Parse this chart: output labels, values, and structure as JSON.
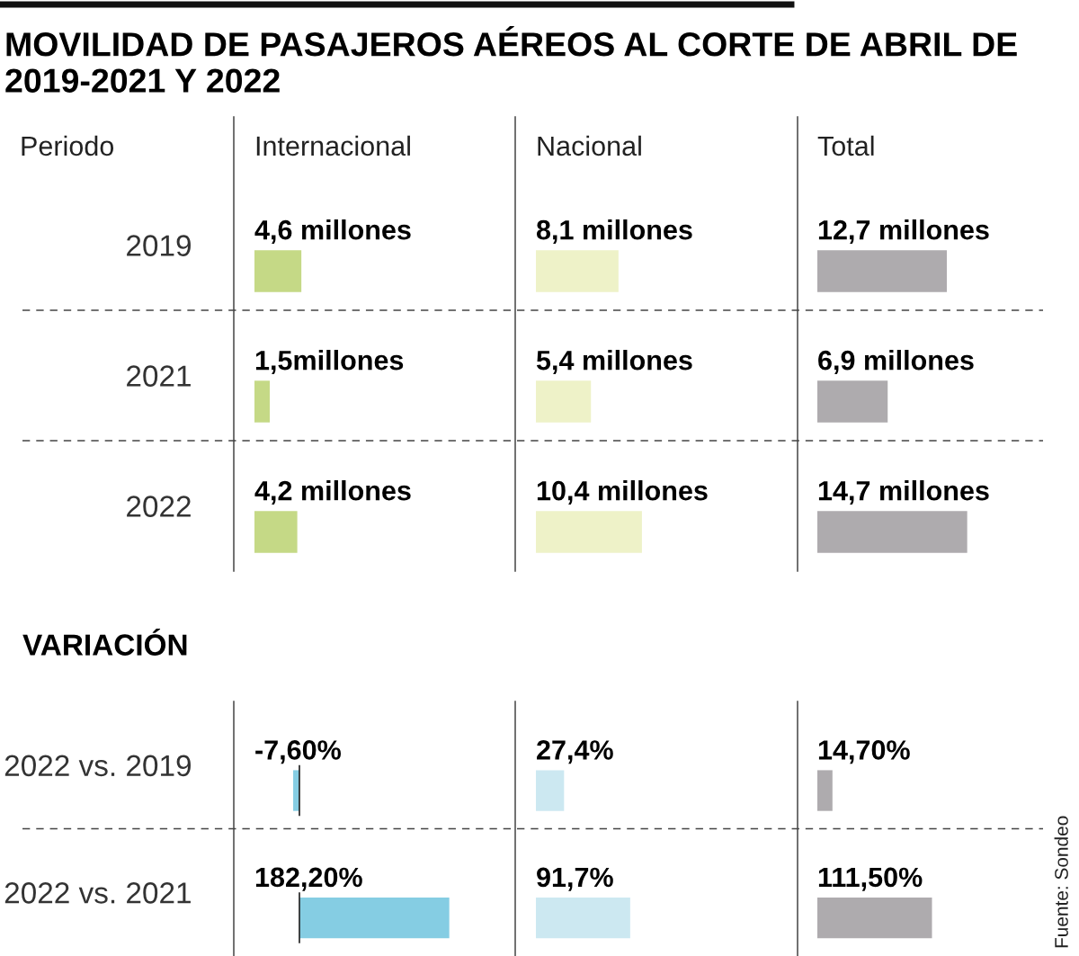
{
  "chart_data": [
    {
      "type": "other",
      "title": "MOVILIDAD DE PASAJEROS AÉREOS AL CORTE DE ABRIL DE 2019-2021 Y 2022",
      "annotations": [
        "Fuente: Sondeo"
      ]
    },
    {
      "type": "bar",
      "orientation": "horizontal",
      "title": "Internacional",
      "ylabel": "Periodo",
      "categories": [
        "2019",
        "2021",
        "2022"
      ],
      "values": [
        4.6,
        1.5,
        4.2
      ],
      "value_labels": [
        "4,6 millones",
        "1,5millones",
        "4,2 millones"
      ],
      "color": "#c5d986",
      "tick_labels": "y"
    },
    {
      "type": "bar",
      "orientation": "horizontal",
      "title": "Nacional",
      "categories": [
        null,
        null,
        null
      ],
      "values": [
        8.1,
        5.4,
        10.4
      ],
      "value_labels": [
        "8,1 millones",
        "5,4 millones",
        "10,4 millones"
      ],
      "color": "#eef2c8",
      "tick_labels": false
    },
    {
      "type": "bar",
      "orientation": "horizontal",
      "title": "Total",
      "categories": [
        null,
        null,
        null
      ],
      "values": [
        12.7,
        6.9,
        14.7
      ],
      "value_labels": [
        "12,7 millones",
        "6,9 millones",
        "14,7 millones"
      ],
      "color": "#aeabae",
      "tick_labels": false
    },
    {
      "type": "bar",
      "orientation": "horizontal",
      "subtitle": "VARIACIÓN",
      "categories": [
        "2022 vs. 2019",
        "2022 vs. 2021"
      ],
      "values": [
        -7.6,
        182.2
      ],
      "value_labels": [
        "-7,60%",
        "182,20%"
      ],
      "color": "#85cde3",
      "tick_labels": "y"
    },
    {
      "type": "bar",
      "orientation": "horizontal",
      "categories": [
        null,
        null
      ],
      "values": [
        27.4,
        91.7
      ],
      "value_labels": [
        "27,4%",
        "91,7%"
      ],
      "color": "#cce8f1",
      "tick_labels": false
    },
    {
      "type": "bar",
      "orientation": "horizontal",
      "categories": [
        null,
        null
      ],
      "values": [
        14.7,
        111.5
      ],
      "value_labels": [
        "14,70%",
        "111,50%"
      ],
      "color": "#aeabae",
      "tick_labels": false
    }
  ]
}
